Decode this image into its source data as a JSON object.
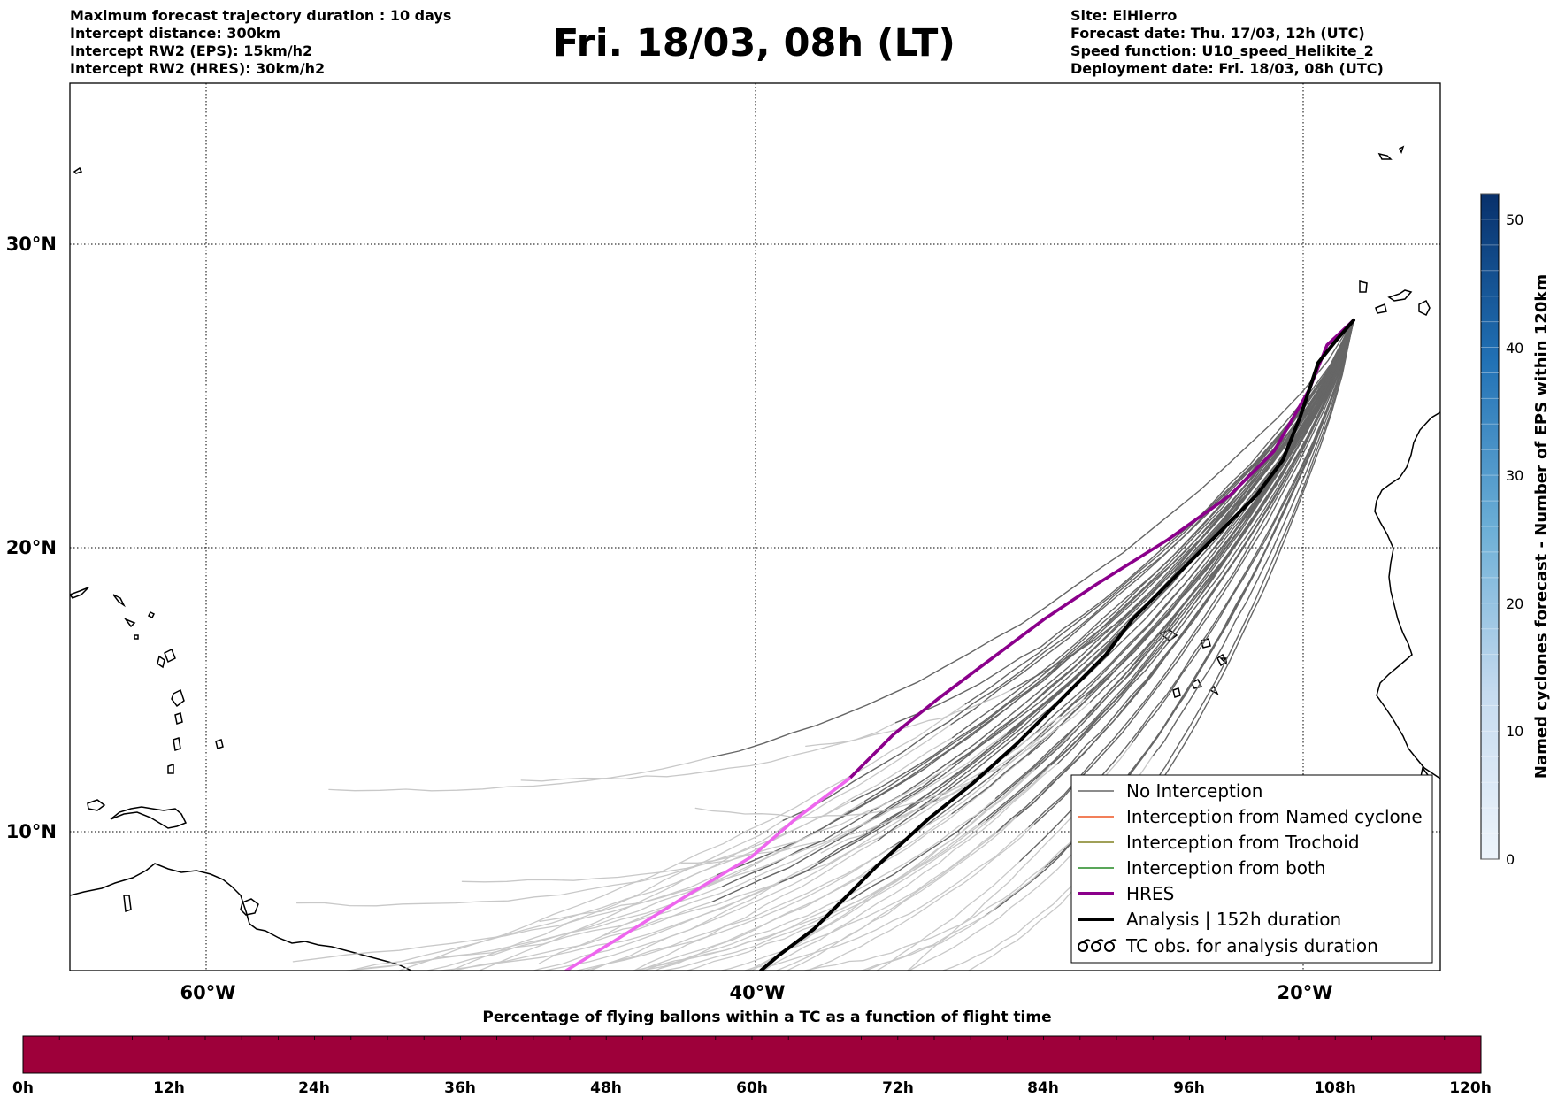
{
  "header_left": [
    "Maximum forecast trajectory duration : 10 days",
    "Intercept distance: 300km",
    "Intercept RW2 (EPS):  15km/h2",
    "Intercept RW2 (HRES): 30km/h2"
  ],
  "title": "Fri. 18/03, 08h (LT)",
  "header_right": [
    "Site: ElHierro",
    "Forecast date: Thu. 17/03, 12h (UTC)",
    "Speed function: U10_speed_Helikite_2",
    "Deployment date: Fri. 18/03, 08h (UTC)"
  ],
  "map": {
    "lon_range": [
      -65,
      15
    ],
    "lat_range": [
      5.3,
      34.6
    ],
    "lon_labels": [
      "60°W",
      "40°W",
      "20°W"
    ],
    "lat_labels": [
      "30°N",
      "20°N",
      "10°N"
    ],
    "colors": {
      "no_interception": "#666666",
      "no_interception_late": "#c8c8c8",
      "named_cyclone": "#ee5522",
      "trochoid": "#808020",
      "both": "#228822",
      "hres": "#8b008b",
      "hres_late": "#ee66ee",
      "analysis": "#000000"
    }
  },
  "legend": [
    {
      "label": "No Interception",
      "style": "no_interception"
    },
    {
      "label": "Interception from Named cyclone",
      "style": "named_cyclone"
    },
    {
      "label": "Interception from Trochoid",
      "style": "trochoid"
    },
    {
      "label": "Interception from both",
      "style": "both"
    },
    {
      "label": "HRES",
      "style": "hres"
    },
    {
      "label": "Analysis | 152h duration",
      "style": "analysis"
    },
    {
      "label": "TC obs. for analysis duration",
      "style": "tc_symbol"
    }
  ],
  "colorbar": {
    "label": "Named cyclones forecast - Number of EPS within 120km",
    "ticks": [
      "0",
      "10",
      "20",
      "30",
      "40",
      "50"
    ],
    "range": [
      0,
      52
    ]
  },
  "bottom_bar": {
    "caption": "Percentage of flying ballons within a TC as a function of flight time",
    "ticks": [
      "0h",
      "12h",
      "24h",
      "36h",
      "48h",
      "60h",
      "72h",
      "84h",
      "96h",
      "108h",
      "120h"
    ],
    "fill_color": "#9e003a"
  }
}
